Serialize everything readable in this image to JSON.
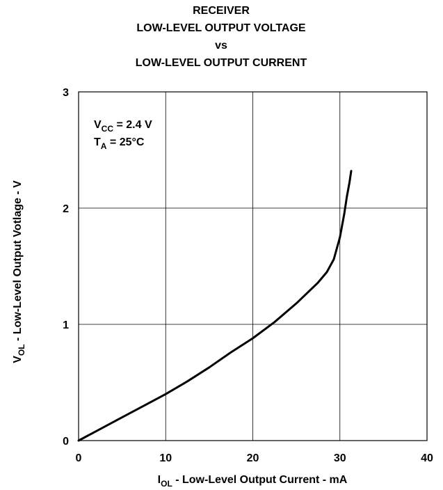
{
  "chart_data": {
    "type": "line",
    "title_lines": [
      "RECEIVER",
      "LOW-LEVEL OUTPUT VOLTAGE",
      "vs",
      "LOW-LEVEL OUTPUT CURRENT"
    ],
    "xlabel": {
      "main": "I",
      "sub": "OL",
      "rest": " - Low-Level Output Current - mA"
    },
    "ylabel": {
      "main": "V",
      "sub": "OL",
      "rest": "  - Low-Level Output Votlage - V"
    },
    "xlim": [
      0,
      40
    ],
    "ylim": [
      0,
      3
    ],
    "xticks": [
      0,
      10,
      20,
      30,
      40
    ],
    "yticks": [
      0,
      1,
      2,
      3
    ],
    "xtick_labels": [
      "0",
      "10",
      "20",
      "30",
      "40"
    ],
    "ytick_labels": [
      "0",
      "1",
      "2",
      "3"
    ],
    "grid": true,
    "annotations": [
      {
        "main": "V",
        "sub": "CC",
        "rest": " = 2.4 V"
      },
      {
        "main": "T",
        "sub": "A",
        "rest": " = 25°C"
      }
    ],
    "series": [
      {
        "x": [
          0,
          2.5,
          5,
          7.5,
          10,
          12.5,
          15,
          17.5,
          20,
          22.5,
          25,
          27.5,
          28.5,
          29.3,
          30,
          30.5,
          30.8,
          31.1,
          31.3
        ],
        "y": [
          0,
          0.1,
          0.2,
          0.3,
          0.4,
          0.51,
          0.63,
          0.76,
          0.88,
          1.02,
          1.18,
          1.36,
          1.45,
          1.56,
          1.75,
          1.95,
          2.1,
          2.22,
          2.32
        ]
      }
    ]
  }
}
